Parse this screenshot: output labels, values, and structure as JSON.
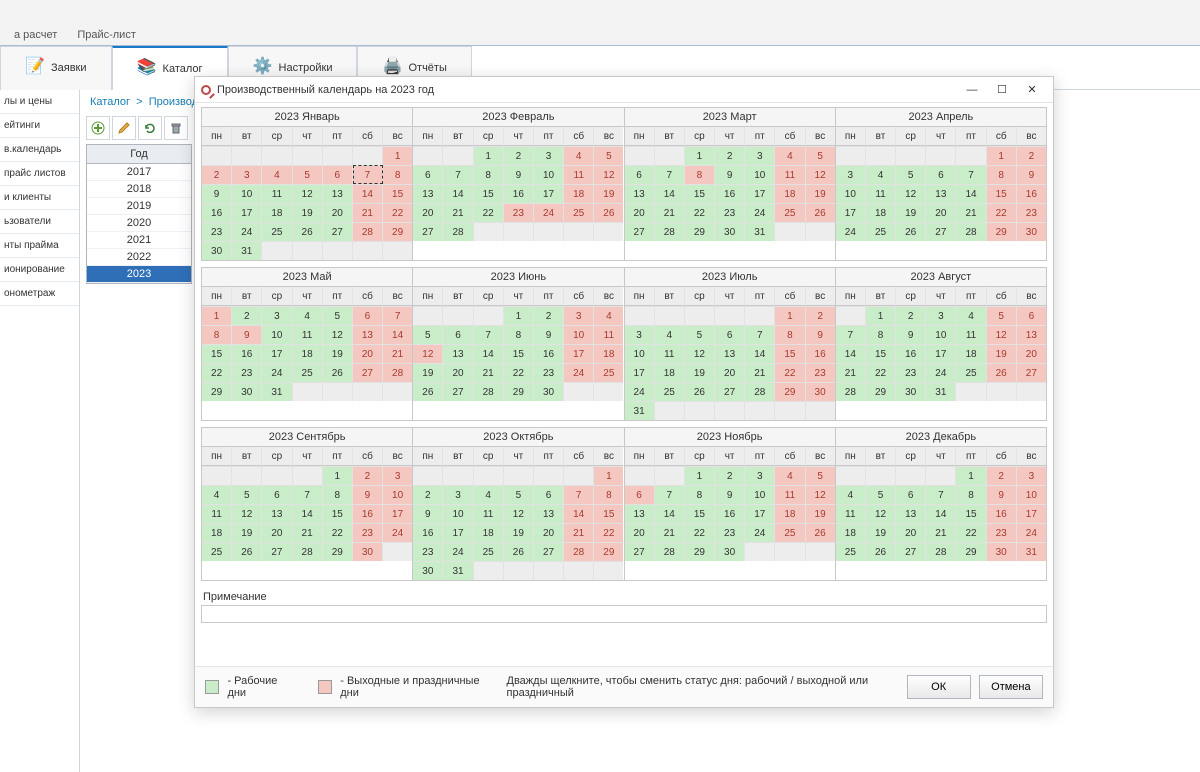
{
  "top_tabs": {
    "left": "а расчет",
    "right": "Прайс-лист"
  },
  "main_tabs": {
    "requests": "Заявки",
    "catalog": "Каталог",
    "settings": "Настройки",
    "reports": "Отчёты"
  },
  "sidebar": {
    "items": [
      "лы и цены",
      "ейтинги",
      "в.календарь",
      "прайс листов",
      "и клиенты",
      "ьзователи",
      "нты прайма",
      "ионирование",
      "онометраж"
    ]
  },
  "breadcrumb": {
    "root": "Каталог",
    "sep": ">",
    "leaf": "Производственный календарь"
  },
  "year_panel": {
    "header": "Год",
    "years": [
      2017,
      2018,
      2019,
      2020,
      2021,
      2022,
      2023
    ],
    "selected": 2023
  },
  "dialog": {
    "title": "Производственный календарь на 2023 год",
    "dows": [
      "пн",
      "вт",
      "ср",
      "чт",
      "пт",
      "сб",
      "вс"
    ],
    "colors": {
      "work": "#c9ecc9",
      "off": "#f4c7c0",
      "empty": "#ededed",
      "border": "#c8c8c8"
    },
    "today": {
      "month": 0,
      "day": 7
    },
    "legend": {
      "work": "- Рабочие дни",
      "off": "- Выходные и праздничные дни",
      "hint": "Дважды щелкните, чтобы сменить статус дня: рабочий / выходной или праздничный"
    },
    "note_label": "Примечание",
    "note_value": "",
    "buttons": {
      "ok": "ОК",
      "cancel": "Отмена"
    },
    "months": [
      {
        "title": "2023 Январь",
        "start": 6,
        "days": 31,
        "off": [
          1,
          2,
          3,
          4,
          5,
          6,
          7,
          8,
          14,
          15,
          21,
          22,
          28,
          29
        ]
      },
      {
        "title": "2023 Февраль",
        "start": 2,
        "days": 28,
        "off": [
          4,
          5,
          11,
          12,
          18,
          19,
          23,
          24,
          25,
          26
        ]
      },
      {
        "title": "2023 Март",
        "start": 2,
        "days": 31,
        "off": [
          4,
          5,
          8,
          11,
          12,
          18,
          19,
          25,
          26
        ]
      },
      {
        "title": "2023 Апрель",
        "start": 5,
        "days": 30,
        "off": [
          1,
          2,
          8,
          9,
          15,
          16,
          22,
          23,
          29,
          30
        ]
      },
      {
        "title": "2023 Май",
        "start": 0,
        "days": 31,
        "off": [
          1,
          6,
          7,
          8,
          9,
          13,
          14,
          20,
          21,
          27,
          28
        ]
      },
      {
        "title": "2023 Июнь",
        "start": 3,
        "days": 30,
        "off": [
          3,
          4,
          10,
          11,
          12,
          17,
          18,
          24,
          25
        ]
      },
      {
        "title": "2023 Июль",
        "start": 5,
        "days": 31,
        "off": [
          1,
          2,
          8,
          9,
          15,
          16,
          22,
          23,
          29,
          30
        ]
      },
      {
        "title": "2023 Август",
        "start": 1,
        "days": 31,
        "off": [
          5,
          6,
          12,
          13,
          19,
          20,
          26,
          27
        ]
      },
      {
        "title": "2023 Сентябрь",
        "start": 4,
        "days": 30,
        "off": [
          2,
          3,
          9,
          10,
          16,
          17,
          23,
          24,
          30
        ]
      },
      {
        "title": "2023 Октябрь",
        "start": 6,
        "days": 31,
        "off": [
          1,
          7,
          8,
          14,
          15,
          21,
          22,
          28,
          29
        ]
      },
      {
        "title": "2023 Ноябрь",
        "start": 2,
        "days": 30,
        "off": [
          4,
          5,
          6,
          11,
          12,
          18,
          19,
          25,
          26
        ]
      },
      {
        "title": "2023 Декабрь",
        "start": 4,
        "days": 31,
        "off": [
          2,
          3,
          9,
          10,
          16,
          17,
          23,
          24,
          30,
          31
        ]
      }
    ]
  }
}
